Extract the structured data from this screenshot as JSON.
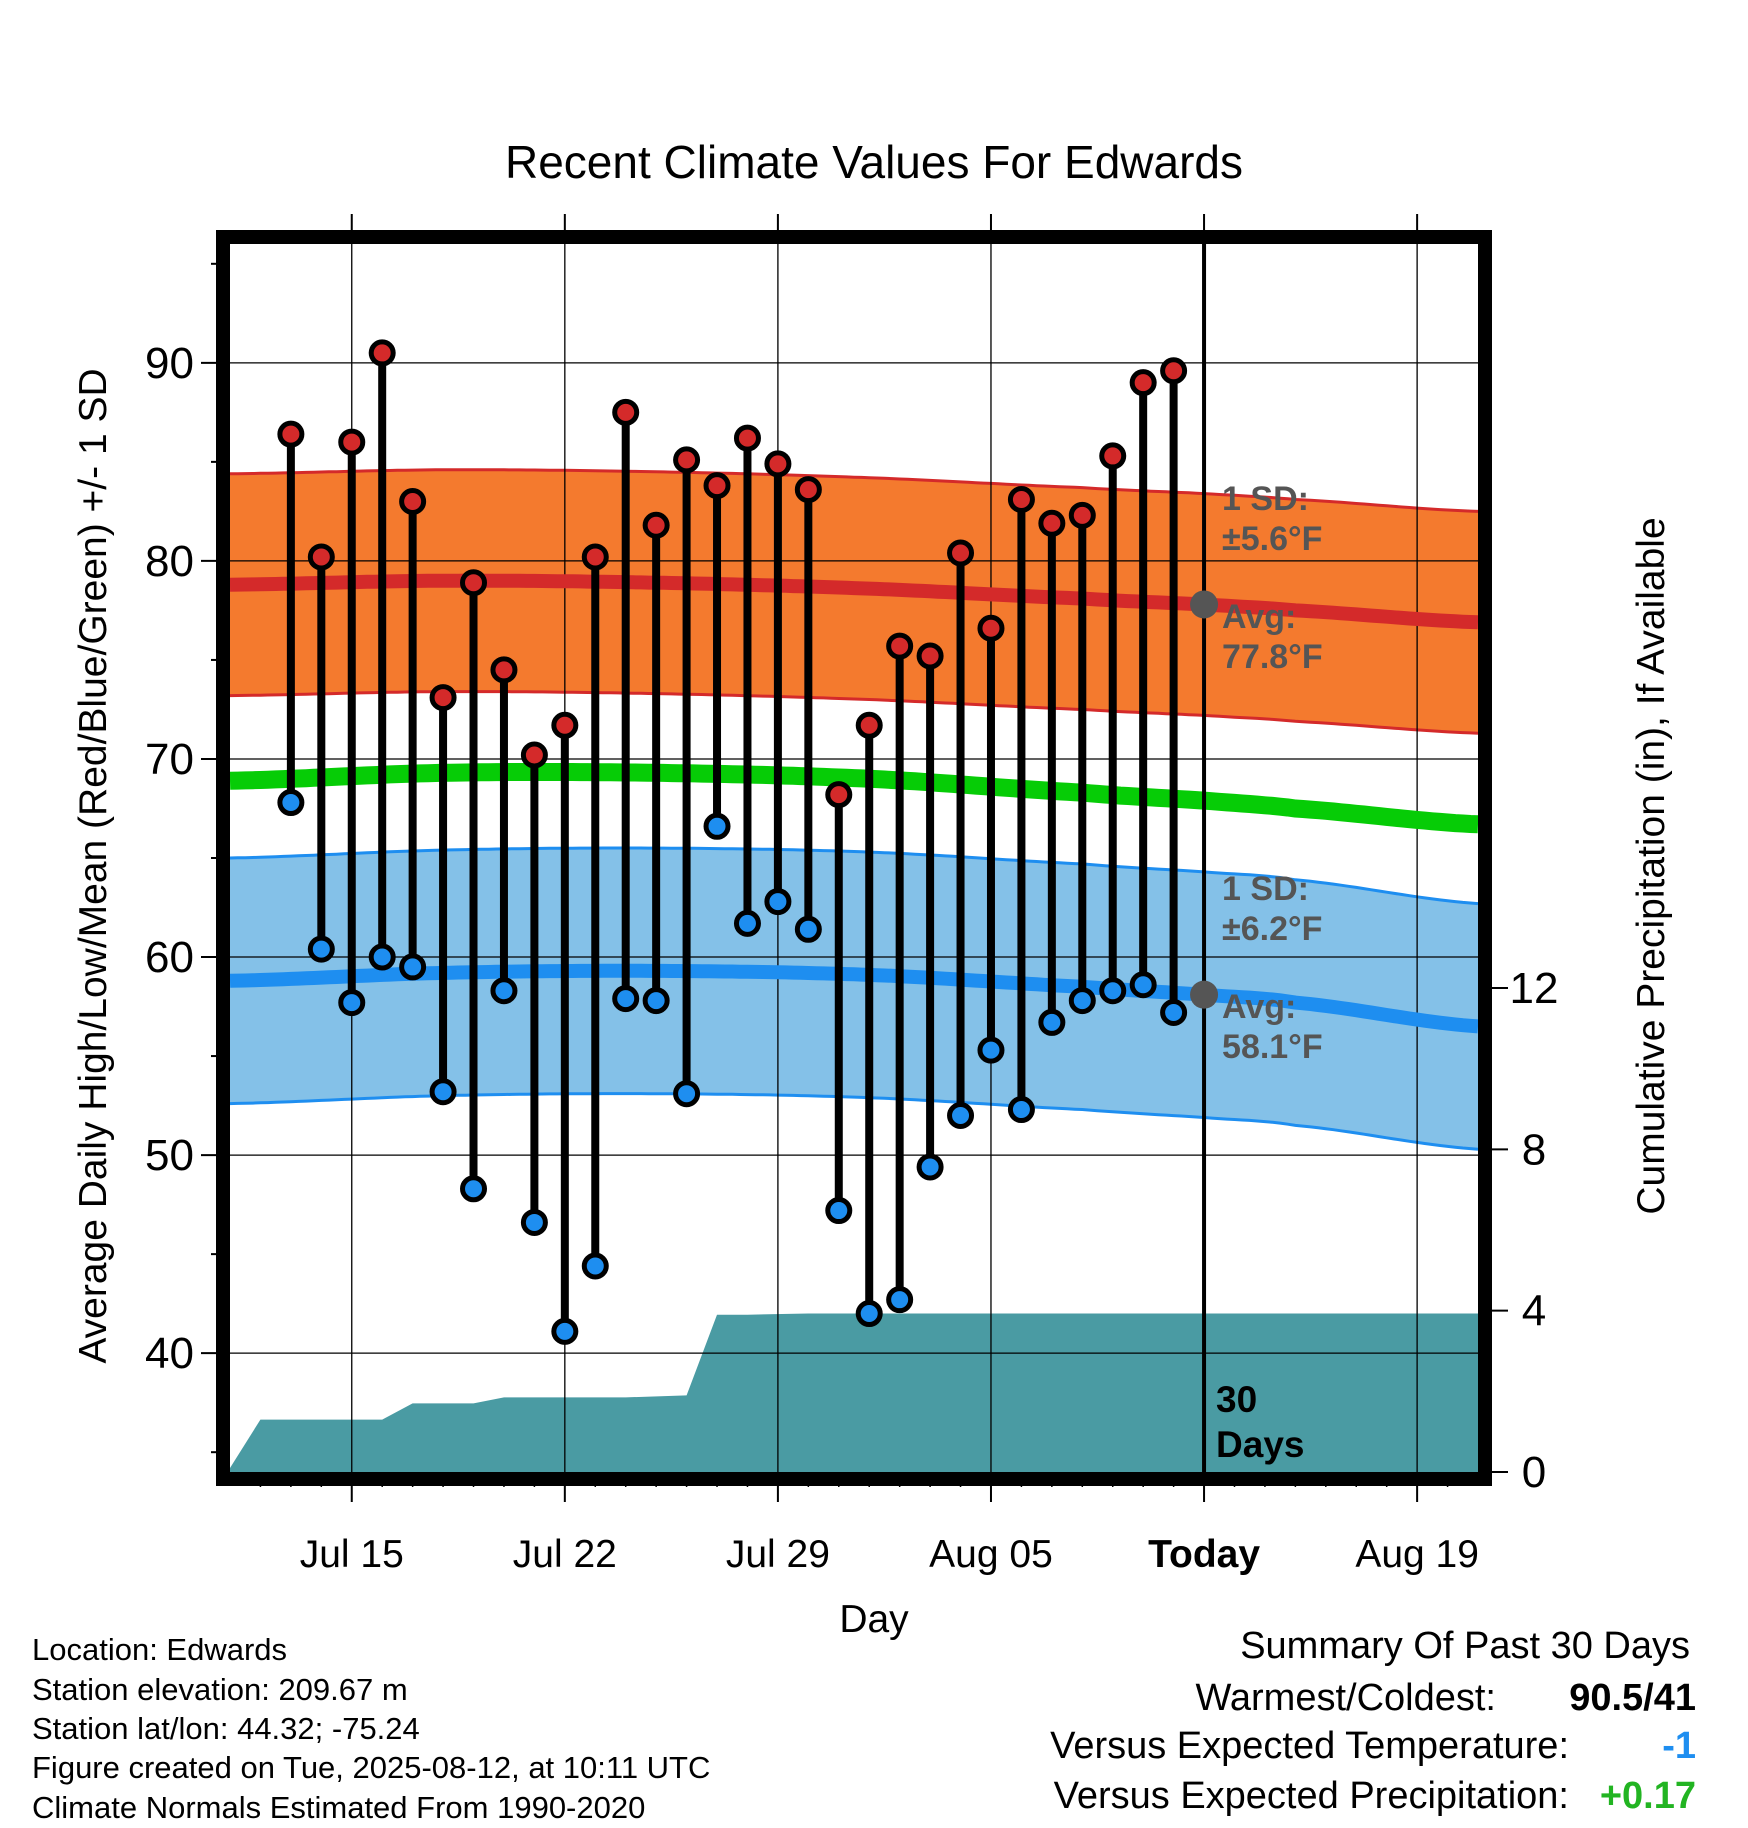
{
  "chart_data": {
    "type": "line",
    "title": "Recent Climate Values For Edwards",
    "xlabel": "Day",
    "ylabel_left": "Average Daily High/Low/Mean (Red/Blue/Green) +/- 1 SD",
    "ylabel_right": "Cumulative Precipitation (in), If Available",
    "ylim_left": [
      34,
      96
    ],
    "ylim_right": [
      0,
      30.45
    ],
    "xlim": [
      "Jul 11",
      "Aug 21"
    ],
    "x_ticks": [
      {
        "date": "Jul 15",
        "label": "Jul 15"
      },
      {
        "date": "Jul 22",
        "label": "Jul 22"
      },
      {
        "date": "Jul 29",
        "label": "Jul 29"
      },
      {
        "date": "Aug 05",
        "label": "Aug 05"
      },
      {
        "date": "Aug 12",
        "label": "Today"
      },
      {
        "date": "Aug 19",
        "label": "Aug 19"
      }
    ],
    "y_ticks_left": [
      40,
      50,
      60,
      70,
      80,
      90
    ],
    "y_ticks_right": [
      0,
      4,
      8,
      12
    ],
    "grid": true,
    "today_line": {
      "date": "Aug 12",
      "label_top": "30",
      "label_bottom": "Days"
    },
    "daily": {
      "dates": [
        "Jul 13",
        "Jul 14",
        "Jul 15",
        "Jul 16",
        "Jul 17",
        "Jul 18",
        "Jul 19",
        "Jul 20",
        "Jul 21",
        "Jul 22",
        "Jul 23",
        "Jul 24",
        "Jul 25",
        "Jul 26",
        "Jul 27",
        "Jul 28",
        "Jul 29",
        "Jul 30",
        "Jul 31",
        "Aug 01",
        "Aug 02",
        "Aug 03",
        "Aug 04",
        "Aug 05",
        "Aug 06",
        "Aug 07",
        "Aug 08",
        "Aug 09",
        "Aug 10",
        "Aug 11"
      ],
      "high": [
        86.4,
        80.2,
        86.0,
        90.5,
        83.0,
        73.1,
        78.9,
        74.5,
        70.2,
        71.7,
        80.2,
        87.5,
        81.8,
        85.1,
        83.8,
        86.2,
        84.9,
        83.6,
        68.2,
        71.7,
        75.7,
        75.2,
        80.4,
        76.6,
        83.1,
        81.9,
        82.3,
        85.3,
        89.0,
        89.6
      ],
      "low": [
        67.8,
        60.4,
        57.7,
        60.0,
        59.5,
        53.2,
        48.3,
        58.3,
        46.6,
        41.1,
        44.4,
        57.9,
        57.8,
        53.1,
        66.6,
        61.7,
        62.8,
        61.4,
        47.2,
        42.0,
        42.7,
        49.4,
        52.0,
        55.3,
        52.3,
        56.7,
        57.8,
        58.3,
        58.6,
        57.2
      ]
    },
    "normals": {
      "dates": [
        "Jul 11",
        "Jul 18",
        "Jul 25",
        "Aug 01",
        "Aug 08",
        "Aug 12",
        "Aug 15",
        "Aug 21"
      ],
      "avg_high": [
        78.8,
        79.0,
        78.9,
        78.6,
        78.1,
        77.8,
        77.5,
        76.9
      ],
      "avg_low": [
        58.8,
        59.2,
        59.3,
        59.1,
        58.5,
        58.1,
        57.7,
        56.5
      ],
      "avg_mean": [
        68.9,
        69.3,
        69.3,
        69.0,
        68.3,
        67.9,
        67.5,
        66.7
      ],
      "high_sd": 5.6,
      "low_sd": 6.2
    },
    "precip_cumulative": {
      "dates": [
        "Jul 11",
        "Jul 12",
        "Jul 16",
        "Jul 17",
        "Jul 19",
        "Jul 20",
        "Jul 23",
        "Jul 24",
        "Jul 26",
        "Jul 27",
        "Jul 28",
        "Jul 30",
        "Aug 21"
      ],
      "values": [
        0.1,
        1.3,
        1.3,
        1.7,
        1.7,
        1.85,
        1.85,
        1.85,
        1.9,
        3.9,
        3.9,
        3.93,
        3.93
      ]
    },
    "annotations": {
      "high_sd_label": "1 SD:",
      "high_sd_value": "±5.6°F",
      "high_avg_label": "Avg:",
      "high_avg_value": "77.8°F",
      "low_sd_label": "1 SD:",
      "low_sd_value": "±6.2°F",
      "low_avg_label": "Avg:",
      "low_avg_value": "58.1°F"
    },
    "colors": {
      "high_band": "#f47a2e",
      "high_line": "#d42a2a",
      "low_band": "#84c1e8",
      "low_line": "#1e8ef0",
      "mean_line": "#06cc06",
      "precip": "#4a9ba3",
      "high_dot": "#d42a2a",
      "low_dot": "#1e8ef0",
      "annotation_text": "#555555"
    }
  },
  "info": {
    "location": "Location: Edwards",
    "elevation": "Station elevation: 209.67 m",
    "latlon": "Station lat/lon: 44.32; -75.24",
    "created": "Figure created on Tue, 2025-08-12, at 10:11 UTC",
    "normals": "Climate Normals Estimated From 1990-2020"
  },
  "summary": {
    "title": "Summary Of Past 30 Days",
    "warmest_label": "Warmest/Coldest:",
    "warmest_value": "90.5/41",
    "temp_label": "Versus Expected Temperature:",
    "temp_value": "-1",
    "precip_label": "Versus Expected Precipitation:",
    "precip_value": "+0.17",
    "temp_color": "#1e8ef0",
    "precip_color": "#22b422"
  }
}
